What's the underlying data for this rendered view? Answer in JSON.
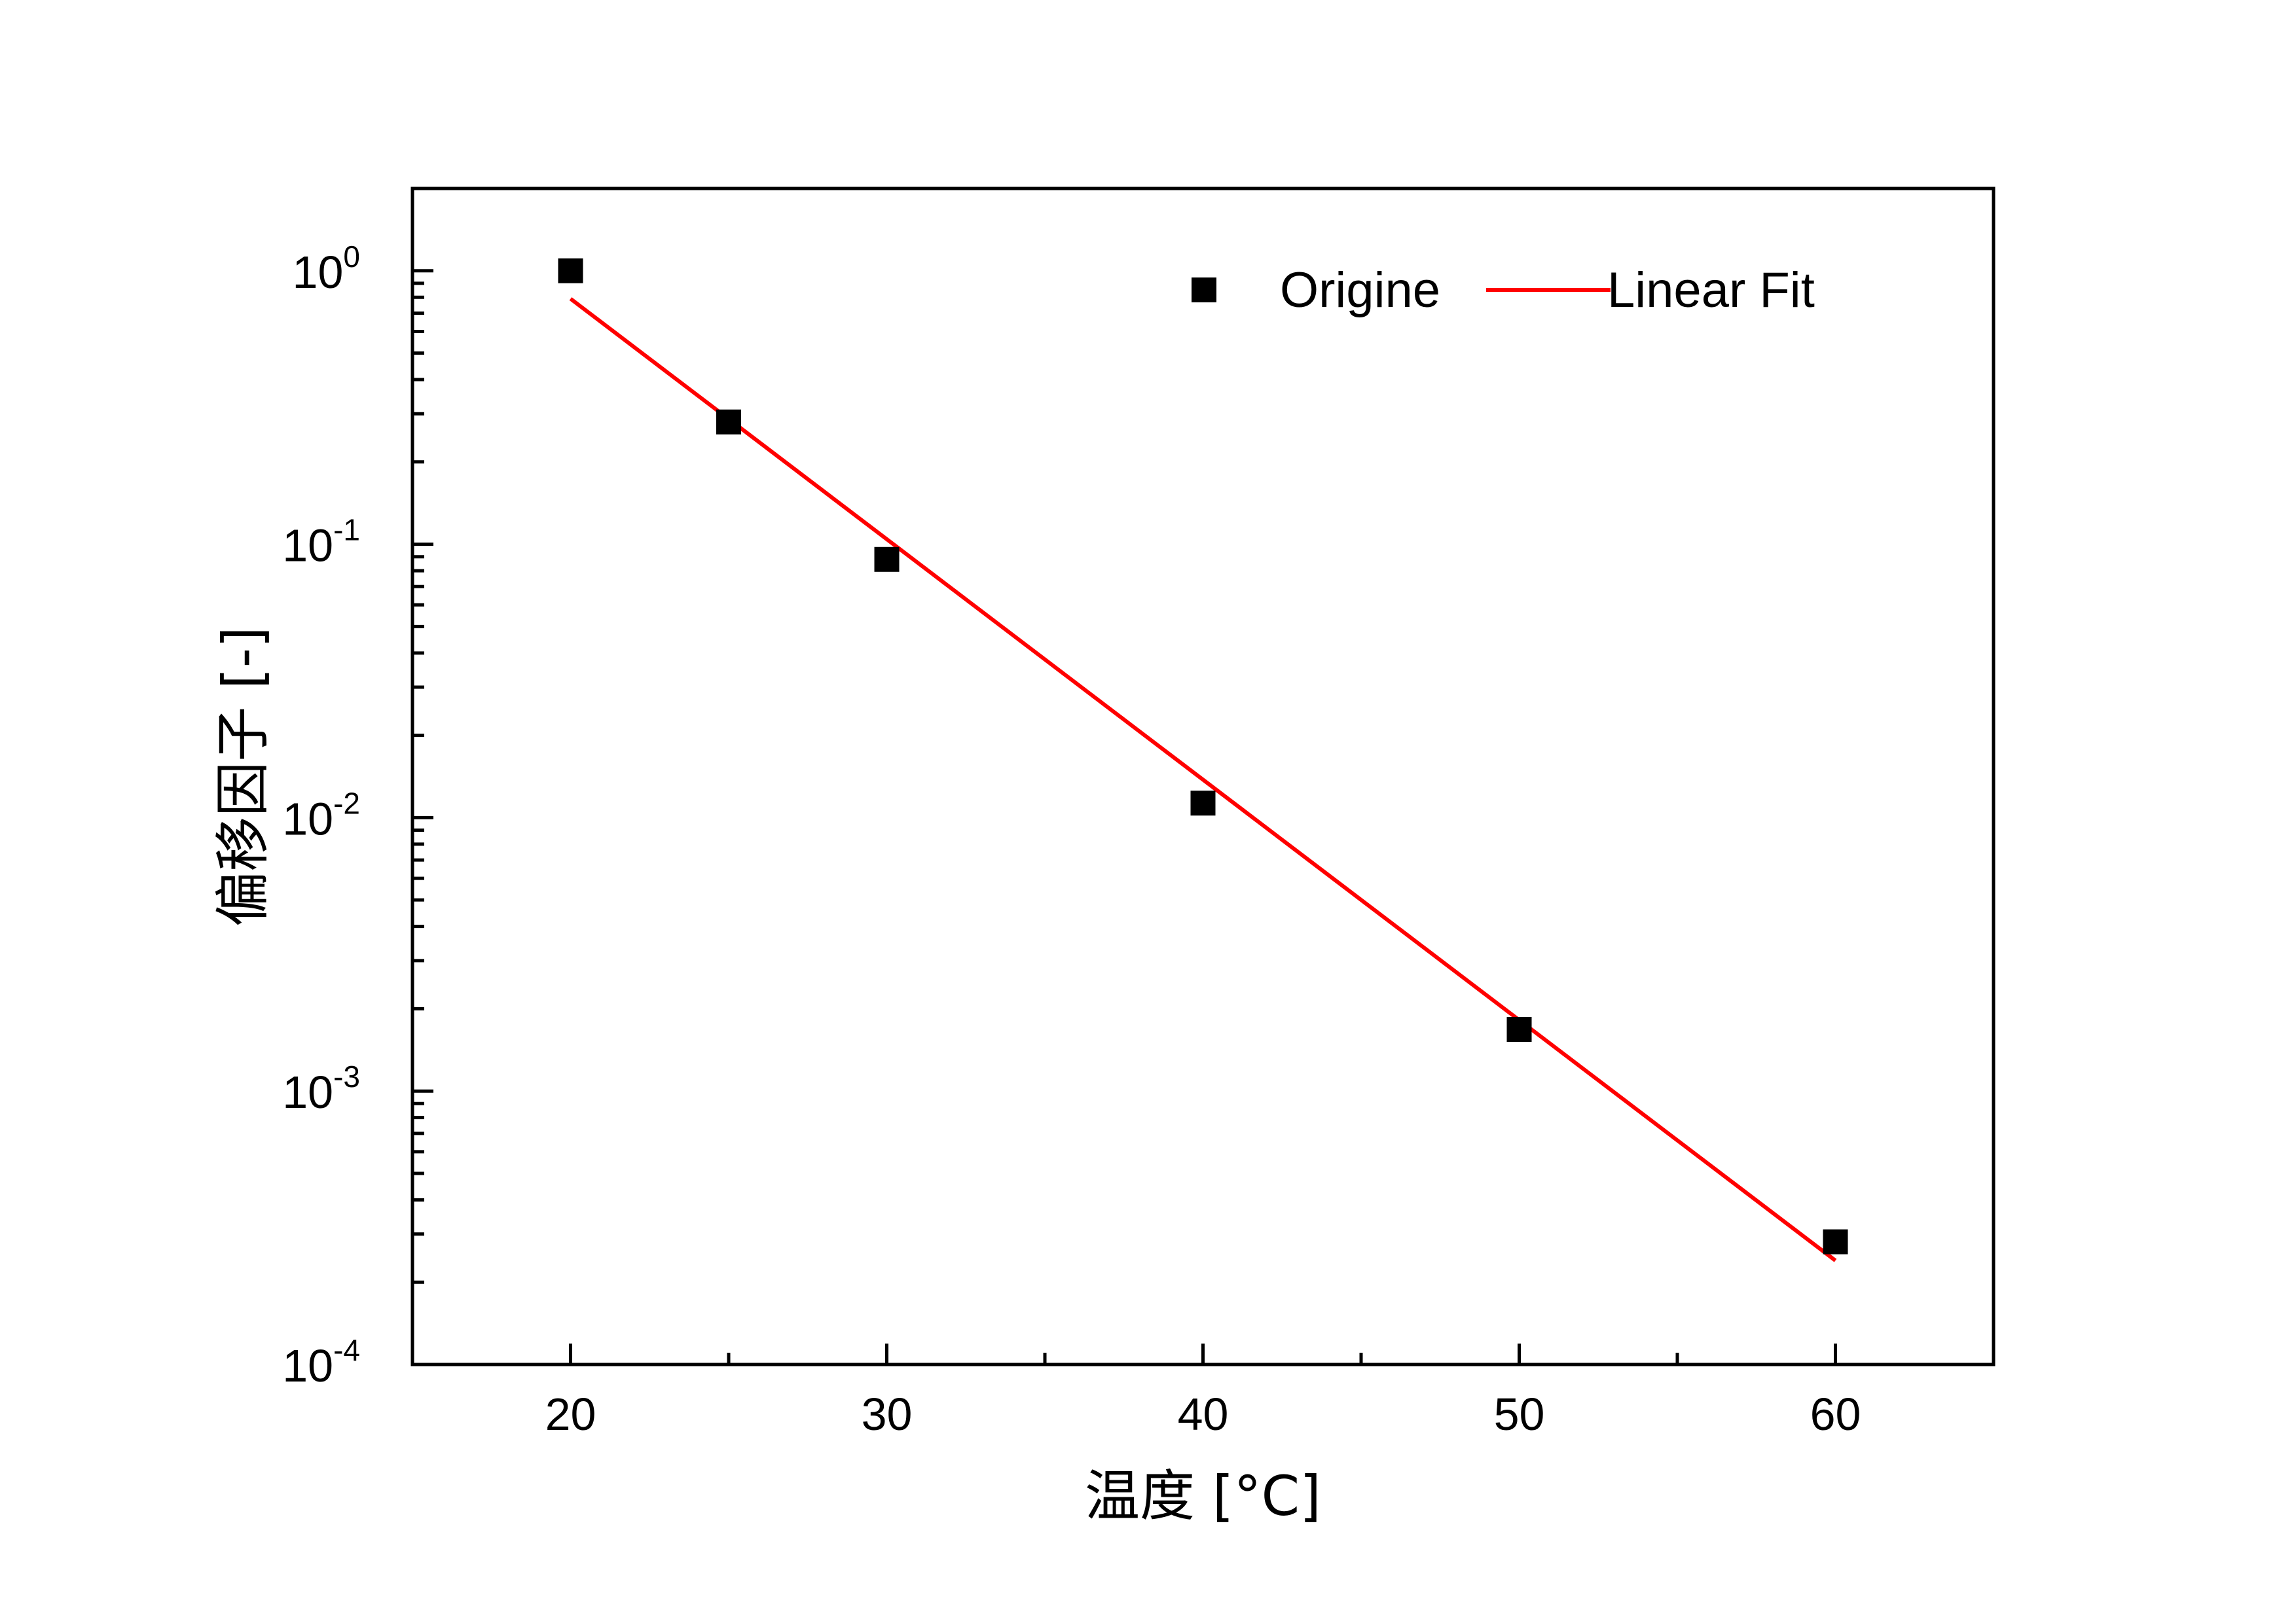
{
  "chart_data": {
    "type": "scatter",
    "title": "",
    "xlabel": "温度 [°C]",
    "ylabel": "偏移因子 [-]",
    "xlim": [
      15,
      65
    ],
    "ylim": [
      0.0001,
      2
    ],
    "yscale": "log",
    "x_ticks": [
      {
        "value": 20,
        "label": "20"
      },
      {
        "value": 30,
        "label": "30"
      },
      {
        "value": 40,
        "label": "40"
      },
      {
        "value": 50,
        "label": "50"
      },
      {
        "value": 60,
        "label": "60"
      }
    ],
    "x_minor_ticks": [
      25,
      35,
      45,
      55
    ],
    "y_ticks": [
      {
        "value": 1,
        "base": "10",
        "exp": "0"
      },
      {
        "value": 0.1,
        "base": "10",
        "exp": "-1"
      },
      {
        "value": 0.01,
        "base": "10",
        "exp": "-2"
      },
      {
        "value": 0.001,
        "base": "10",
        "exp": "-3"
      },
      {
        "value": 0.0001,
        "base": "10",
        "exp": "-4"
      }
    ],
    "grid": false,
    "legend_position": "top-right",
    "series": [
      {
        "name": "Origine",
        "kind": "scatter",
        "marker": "square",
        "color": "#000000",
        "x": [
          20,
          25,
          30,
          40,
          50,
          60
        ],
        "y": [
          1.0,
          0.28,
          0.088,
          0.0113,
          0.00168,
          0.000281
        ]
      },
      {
        "name": "Linear Fit",
        "kind": "line",
        "color": "#ff0000",
        "x": [
          20,
          60
        ],
        "y": [
          0.79,
          0.00024
        ]
      }
    ]
  }
}
